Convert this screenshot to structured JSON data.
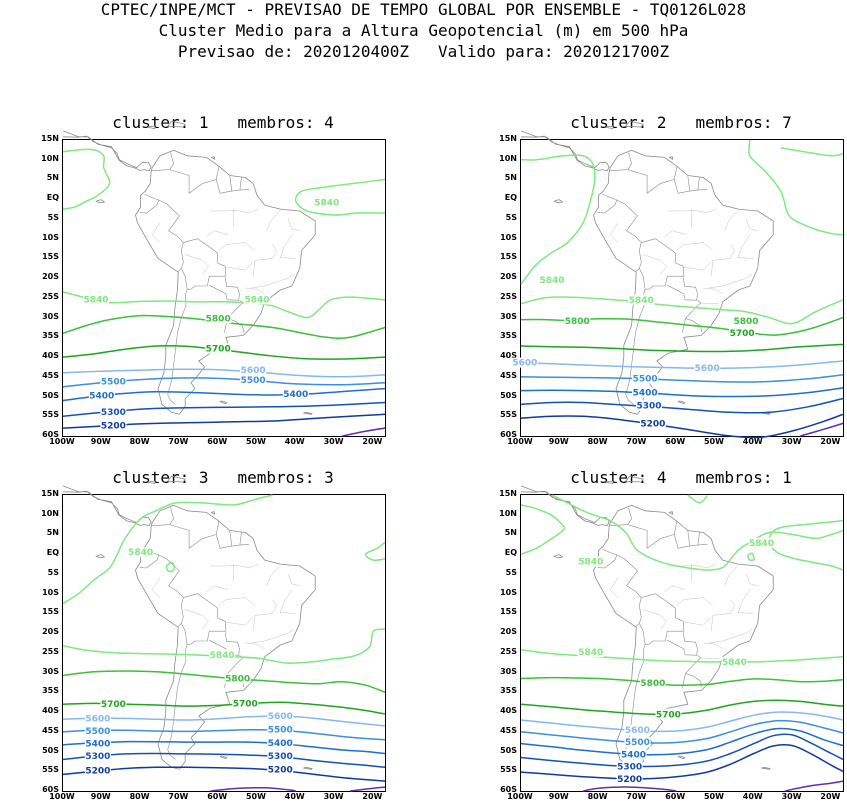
{
  "header": {
    "line1": "CPTEC/INPE/MCT - PREVISAO DE TEMPO GLOBAL POR ENSEMBLE - TQ0126L028",
    "line2": "Cluster Medio para a Altura Geopotencial (m) em 500 hPa",
    "line3": "Previsao de: 2020120400Z   Valido para: 2020121700Z"
  },
  "axes": {
    "lat_labels": [
      "15N",
      "10N",
      "5N",
      "EQ",
      "5S",
      "10S",
      "15S",
      "20S",
      "25S",
      "30S",
      "35S",
      "40S",
      "45S",
      "50S",
      "55S",
      "60S"
    ],
    "lon_labels": [
      "100W",
      "90W",
      "80W",
      "70W",
      "60W",
      "50W",
      "40W",
      "30W",
      "20W"
    ]
  },
  "colors": {
    "c5840": "#7fe87f",
    "c5800": "#3cbf3c",
    "c5700": "#1ea51e",
    "c5600": "#84b8f0",
    "c5500": "#3a8fe0",
    "c5400": "#1a6fcf",
    "c5300": "#1450b8",
    "c5200": "#0f3aa0",
    "c5100": "#5e2fb0",
    "coast": "#8a8a8a"
  },
  "panels": [
    {
      "title": "cluster: 1   membros: 4",
      "labels": [
        "5840",
        "5840",
        "5840",
        "5800",
        "5700",
        "5600",
        "5500",
        "5500",
        "5400",
        "5400",
        "5300",
        "5200"
      ]
    },
    {
      "title": "cluster: 2   membros: 7",
      "labels": [
        "5840",
        "5840",
        "5800",
        "5800",
        "5700",
        "5600",
        "5600",
        "5500",
        "5400",
        "5300",
        "5200"
      ]
    },
    {
      "title": "cluster: 3   membros: 3",
      "labels": [
        "5840",
        "5840",
        "5800",
        "5700",
        "5700",
        "5600",
        "5600",
        "5500",
        "5500",
        "5400",
        "5400",
        "5300",
        "5300",
        "5200",
        "5200"
      ]
    },
    {
      "title": "cluster: 4   membros: 1",
      "labels": [
        "5840",
        "5840",
        "5840",
        "5840",
        "5800",
        "5700",
        "5600",
        "5500",
        "5400",
        "5300",
        "5200"
      ]
    }
  ]
}
